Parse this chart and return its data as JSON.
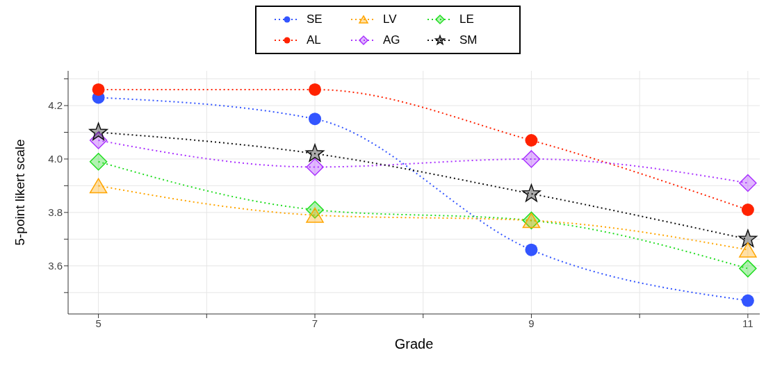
{
  "chart_data": {
    "type": "line",
    "xlabel": "Grade",
    "ylabel": "5-point likert scale",
    "x": [
      5,
      7,
      9,
      11
    ],
    "series": [
      {
        "name": "SE",
        "color": "#3355ff",
        "marker": "circle",
        "values": [
          4.23,
          4.15,
          3.66,
          3.47
        ]
      },
      {
        "name": "LV",
        "color": "#ffa500",
        "marker": "triangle",
        "values": [
          3.9,
          3.79,
          3.77,
          3.66
        ]
      },
      {
        "name": "LE",
        "color": "#22dd22",
        "marker": "diamond",
        "values": [
          3.99,
          3.81,
          3.77,
          3.59
        ]
      },
      {
        "name": "AL",
        "color": "#ff2200",
        "marker": "circle",
        "values": [
          4.26,
          4.26,
          4.07,
          3.81
        ]
      },
      {
        "name": "AG",
        "color": "#aa33ff",
        "marker": "diamond",
        "values": [
          4.07,
          3.97,
          4.0,
          3.91
        ]
      },
      {
        "name": "SM",
        "color": "#111111",
        "marker": "star",
        "values": [
          4.1,
          4.02,
          3.87,
          3.7
        ]
      }
    ],
    "xlim": [
      4.72,
      11.11
    ],
    "ylim": [
      3.42,
      4.33
    ],
    "xticks": [
      5,
      {
        "value": 6,
        "label": null
      },
      7,
      {
        "value": 8,
        "label": null
      },
      9,
      {
        "value": 10,
        "label": null
      },
      11
    ],
    "yticks": [
      {
        "value": 3.5,
        "label": null
      },
      {
        "value": 3.6,
        "label": "3.6"
      },
      {
        "value": 3.7,
        "label": null
      },
      {
        "value": 3.8,
        "label": "3.8"
      },
      {
        "value": 3.9,
        "label": null
      },
      {
        "value": 4.0,
        "label": "4.0"
      },
      {
        "value": 4.1,
        "label": null
      },
      {
        "value": 4.2,
        "label": "4.2"
      },
      {
        "value": 4.3,
        "label": null
      }
    ],
    "grid": true,
    "legend": "top",
    "line_style": "dotted"
  }
}
